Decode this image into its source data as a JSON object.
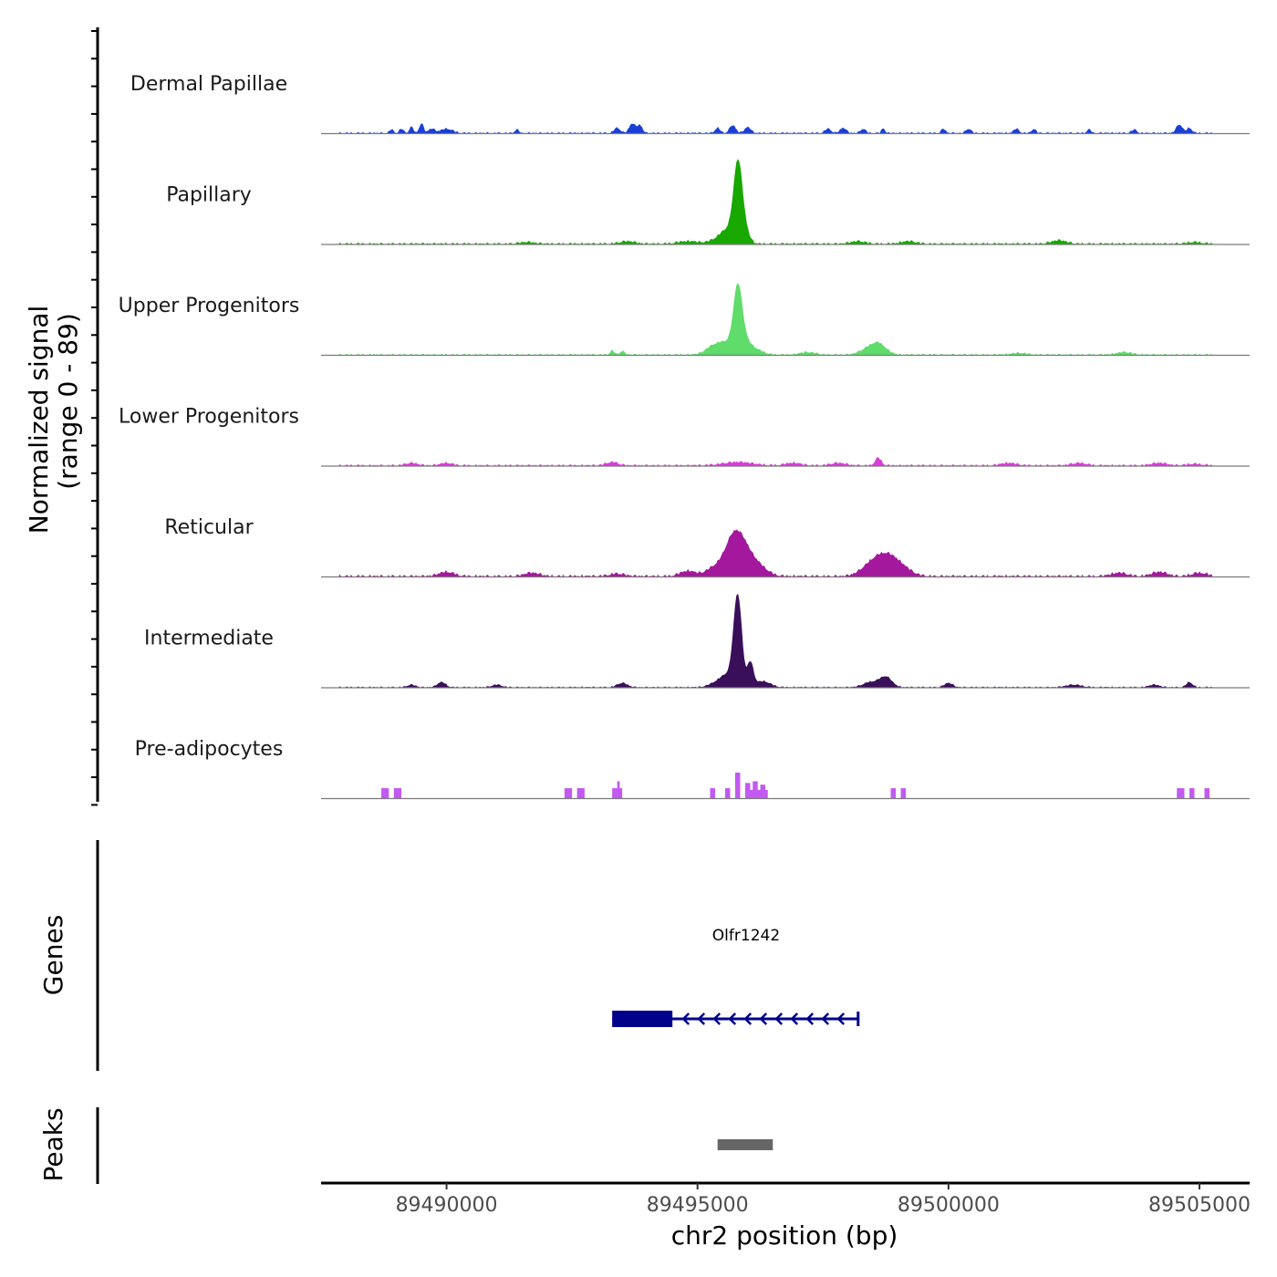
{
  "chart_data": {
    "type": "area",
    "title": "",
    "chromosome": "chr2",
    "xlabel": "chr2 position (bp)",
    "ylabel_line1": "Normalized signal",
    "ylabel_line2": "(range 0 - 89)",
    "xlim": [
      89487500,
      89506000
    ],
    "ylim": [
      0,
      89
    ],
    "x_ticks": [
      89490000,
      89495000,
      89500000,
      89505000
    ],
    "x_tick_labels": [
      "89490000",
      "89495000",
      "89500000",
      "89505000"
    ],
    "tracks": [
      {
        "name": "Dermal Papillae",
        "color": "#1a3fd6",
        "baseline": 1.0,
        "peaks": [
          [
            89488900,
            4,
            40
          ],
          [
            89489100,
            5,
            40
          ],
          [
            89489300,
            7,
            40
          ],
          [
            89489500,
            11,
            40
          ],
          [
            89489700,
            5,
            60
          ],
          [
            89490000,
            5,
            120
          ],
          [
            89491400,
            4,
            40
          ],
          [
            89493400,
            6,
            60
          ],
          [
            89493700,
            11,
            60
          ],
          [
            89493850,
            9,
            50
          ],
          [
            89495400,
            6,
            50
          ],
          [
            89495700,
            9,
            60
          ],
          [
            89496000,
            7,
            60
          ],
          [
            89497600,
            5,
            60
          ],
          [
            89497900,
            6,
            60
          ],
          [
            89498300,
            5,
            50
          ],
          [
            89498700,
            6,
            30
          ],
          [
            89499900,
            5,
            40
          ],
          [
            89500400,
            5,
            50
          ],
          [
            89501350,
            5,
            50
          ],
          [
            89501700,
            5,
            40
          ],
          [
            89502800,
            4,
            40
          ],
          [
            89503700,
            4,
            50
          ],
          [
            89504600,
            10,
            60
          ],
          [
            89504800,
            6,
            50
          ]
        ]
      },
      {
        "name": "Papillary",
        "color": "#18a800",
        "baseline": 1.3,
        "peaks": [
          [
            89495800,
            75,
            80
          ],
          [
            89495900,
            22,
            100
          ],
          [
            89495650,
            12,
            150
          ],
          [
            89495500,
            7,
            200
          ],
          [
            89494800,
            3,
            200
          ],
          [
            89493600,
            3,
            150
          ],
          [
            89491600,
            2,
            150
          ],
          [
            89499200,
            3,
            150
          ],
          [
            89498200,
            3,
            150
          ],
          [
            89502200,
            4,
            150
          ],
          [
            89504900,
            2,
            150
          ]
        ]
      },
      {
        "name": "Upper Progenitors",
        "color": "#5fdc6a",
        "baseline": 1.0,
        "peaks": [
          [
            89495800,
            62,
            80
          ],
          [
            89495900,
            18,
            120
          ],
          [
            89495600,
            14,
            180
          ],
          [
            89495300,
            8,
            150
          ],
          [
            89496150,
            6,
            150
          ],
          [
            89498600,
            13,
            150
          ],
          [
            89498350,
            5,
            150
          ],
          [
            89493300,
            5,
            40
          ],
          [
            89493500,
            4,
            50
          ],
          [
            89497200,
            3,
            150
          ],
          [
            89501400,
            2,
            150
          ],
          [
            89503500,
            3,
            150
          ]
        ]
      },
      {
        "name": "Lower Progenitors",
        "color": "#d73fd6",
        "baseline": 1.2,
        "peaks": [
          [
            89498600,
            9,
            60
          ],
          [
            89495800,
            4,
            300
          ],
          [
            89493300,
            4,
            120
          ],
          [
            89490000,
            3,
            120
          ],
          [
            89489300,
            3,
            120
          ],
          [
            89496900,
            3,
            150
          ],
          [
            89497800,
            3,
            150
          ],
          [
            89501200,
            3,
            150
          ],
          [
            89502600,
            3,
            150
          ],
          [
            89504200,
            3,
            150
          ],
          [
            89504900,
            2,
            150
          ]
        ]
      },
      {
        "name": "Reticular",
        "color": "#a4189d",
        "baseline": 1.5,
        "peaks": [
          [
            89495700,
            35,
            150
          ],
          [
            89495900,
            25,
            150
          ],
          [
            89496150,
            15,
            200
          ],
          [
            89495400,
            12,
            200
          ],
          [
            89498750,
            20,
            200
          ],
          [
            89498450,
            12,
            200
          ],
          [
            89499050,
            10,
            200
          ],
          [
            89494800,
            6,
            150
          ],
          [
            89490000,
            5,
            150
          ],
          [
            89491700,
            4,
            150
          ],
          [
            89493400,
            3,
            150
          ],
          [
            89503400,
            4,
            150
          ],
          [
            89504200,
            5,
            150
          ],
          [
            89505000,
            4,
            150
          ]
        ]
      },
      {
        "name": "Intermediate",
        "color": "#3a0f5a",
        "baseline": 0.8,
        "peaks": [
          [
            89495800,
            105,
            80
          ],
          [
            89496050,
            28,
            60
          ],
          [
            89495600,
            12,
            120
          ],
          [
            89495400,
            6,
            150
          ],
          [
            89496300,
            7,
            150
          ],
          [
            89498750,
            12,
            120
          ],
          [
            89498450,
            6,
            150
          ],
          [
            89489900,
            6,
            80
          ],
          [
            89489300,
            3,
            80
          ],
          [
            89493500,
            5,
            100
          ],
          [
            89491000,
            3,
            100
          ],
          [
            89500000,
            5,
            80
          ],
          [
            89502500,
            3,
            150
          ],
          [
            89504800,
            6,
            60
          ],
          [
            89504100,
            3,
            100
          ]
        ]
      },
      {
        "name": "Pre-adipocytes",
        "color": "#c259f0",
        "baseline": 0,
        "blocks": [
          [
            89488700,
            89488850,
            12
          ],
          [
            89488950,
            89489100,
            12
          ],
          [
            89492350,
            89492500,
            12
          ],
          [
            89492600,
            89492750,
            12
          ],
          [
            89493300,
            89493500,
            12
          ],
          [
            89493400,
            89493450,
            20
          ],
          [
            89495250,
            89495350,
            12
          ],
          [
            89495550,
            89495650,
            12
          ],
          [
            89495750,
            89495850,
            30
          ],
          [
            89495950,
            89496050,
            18
          ],
          [
            89496100,
            89496200,
            20
          ],
          [
            89496250,
            89496350,
            16
          ],
          [
            89496000,
            89496400,
            10
          ],
          [
            89498850,
            89498950,
            12
          ],
          [
            89499050,
            89499150,
            12
          ],
          [
            89504550,
            89504700,
            12
          ],
          [
            89504800,
            89504900,
            12
          ],
          [
            89505100,
            89505200,
            12
          ]
        ]
      }
    ],
    "genes_label": "Genes",
    "genes": [
      {
        "name": "Olfr1242",
        "strand": "-",
        "start": 89493300,
        "end": 89498200,
        "thick_start": 89493300,
        "thick_end": 89494500,
        "color": "#00008b"
      }
    ],
    "peaks_label": "Peaks",
    "peak_regions": [
      {
        "start": 89495400,
        "end": 89496500,
        "color": "#666666"
      }
    ]
  }
}
